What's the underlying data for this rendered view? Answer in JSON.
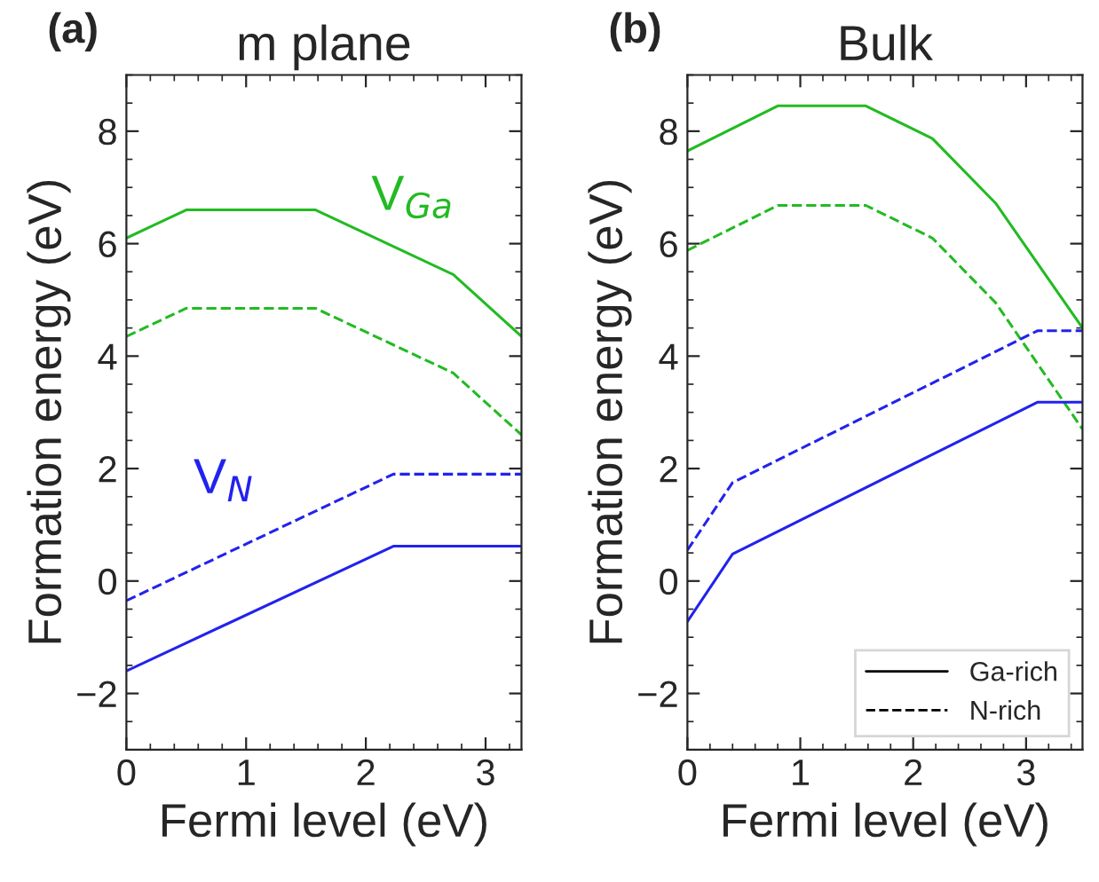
{
  "chart_data": [
    {
      "type": "line",
      "title": "m plane",
      "xlabel": "Fermi level (eV)",
      "ylabel": "Formation energy (eV)",
      "xlim": [
        0,
        3.3
      ],
      "ylim": [
        -3,
        9
      ],
      "xticks": [
        0,
        1,
        2,
        3
      ],
      "yticks": [
        -2,
        0,
        2,
        4,
        6,
        8
      ],
      "grid": false,
      "annotations": [
        "(a)"
      ],
      "series": [
        {
          "name": "V$_{Ga}$",
          "color": "#22bb22",
          "line_style": "solid",
          "x": [
            0,
            0.5,
            1.58,
            2.73,
            3.3
          ],
          "values": [
            6.1,
            6.6,
            6.6,
            5.45,
            4.35
          ]
        },
        {
          "color": "#22bb22",
          "line_style": "dashed",
          "x": [
            0,
            0.5,
            1.58,
            2.73,
            3.3
          ],
          "values": [
            4.35,
            4.85,
            4.85,
            3.7,
            2.6
          ]
        },
        {
          "name": "V$_{N}$",
          "color": "#2222ee",
          "line_style": "solid",
          "x": [
            0,
            2.23,
            3.3
          ],
          "values": [
            -1.6,
            0.62,
            0.62
          ]
        },
        {
          "color": "#2222ee",
          "line_style": "dashed",
          "x": [
            0,
            2.23,
            3.3
          ],
          "values": [
            -0.35,
            1.9,
            1.9
          ]
        }
      ]
    },
    {
      "type": "line",
      "title": "Bulk",
      "xlabel": "Fermi level (eV)",
      "ylabel": "Formation energy (eV)",
      "xlim": [
        0,
        3.5
      ],
      "ylim": [
        -3,
        9
      ],
      "xticks": [
        0,
        1,
        2,
        3
      ],
      "yticks": [
        -2,
        0,
        2,
        4,
        6,
        8
      ],
      "grid": false,
      "annotations": [
        "(b)",
        "Ga-rich",
        "N-rich"
      ],
      "series": [
        {
          "color": "#22bb22",
          "line_style": "solid",
          "x": [
            0,
            0.8,
            1.58,
            2.17,
            2.73,
            3.5
          ],
          "values": [
            7.65,
            8.45,
            8.45,
            7.87,
            6.72,
            4.5
          ]
        },
        {
          "color": "#22bb22",
          "line_style": "dashed",
          "x": [
            0,
            0.8,
            1.58,
            2.17,
            2.73,
            3.5
          ],
          "values": [
            5.88,
            6.68,
            6.68,
            6.1,
            4.95,
            2.7
          ]
        },
        {
          "color": "#2222ee",
          "line_style": "solid",
          "x": [
            0,
            0.4,
            3.1,
            3.5
          ],
          "values": [
            -0.72,
            0.48,
            3.18,
            3.18
          ]
        },
        {
          "color": "#2222ee",
          "line_style": "dashed",
          "x": [
            0,
            0.4,
            3.1,
            3.5
          ],
          "values": [
            0.55,
            1.75,
            4.45,
            4.45
          ]
        }
      ]
    }
  ]
}
